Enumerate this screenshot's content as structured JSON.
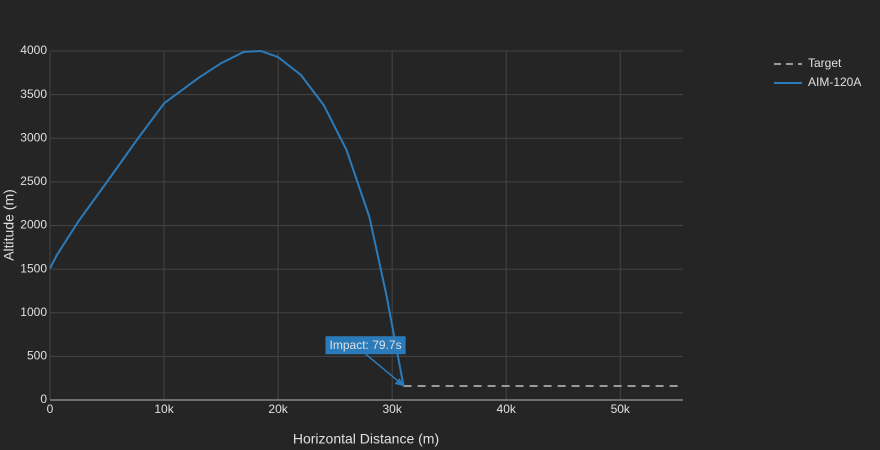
{
  "chart_data": {
    "type": "line",
    "xlabel": "Horizontal Distance (m)",
    "ylabel": "Altitude (m)",
    "xlim": [
      0,
      55500
    ],
    "ylim": [
      0,
      4000
    ],
    "xticks": [
      0,
      {
        "value": 10000,
        "label": "10k"
      },
      {
        "value": 20000,
        "label": "20k"
      },
      {
        "value": 30000,
        "label": "30k"
      },
      {
        "value": 40000,
        "label": "40k"
      },
      {
        "value": 50000,
        "label": "50k"
      }
    ],
    "yticks": [
      0,
      500,
      1000,
      1500,
      2000,
      2500,
      3000,
      3500,
      4000
    ],
    "grid": true,
    "legend": "top-right",
    "series": [
      {
        "name": "Target",
        "color": "#9a9a9a",
        "dash": true,
        "x": [
          31000,
          55500
        ],
        "values": [
          160,
          160
        ]
      },
      {
        "name": "AIM-120A",
        "color": "#2b7bba",
        "dash": false,
        "x": [
          0,
          600,
          2500,
          5000,
          7500,
          10000,
          13000,
          15000,
          17000,
          18500,
          20000,
          22000,
          24000,
          26000,
          28000,
          29500,
          31000
        ],
        "values": [
          1510,
          1660,
          2050,
          2500,
          2960,
          3400,
          3690,
          3860,
          3990,
          4000,
          3930,
          3725,
          3380,
          2865,
          2100,
          1200,
          160
        ]
      }
    ],
    "annotations": [
      {
        "text": "Impact: 79.7s",
        "x": 31000,
        "y": 160
      }
    ]
  }
}
